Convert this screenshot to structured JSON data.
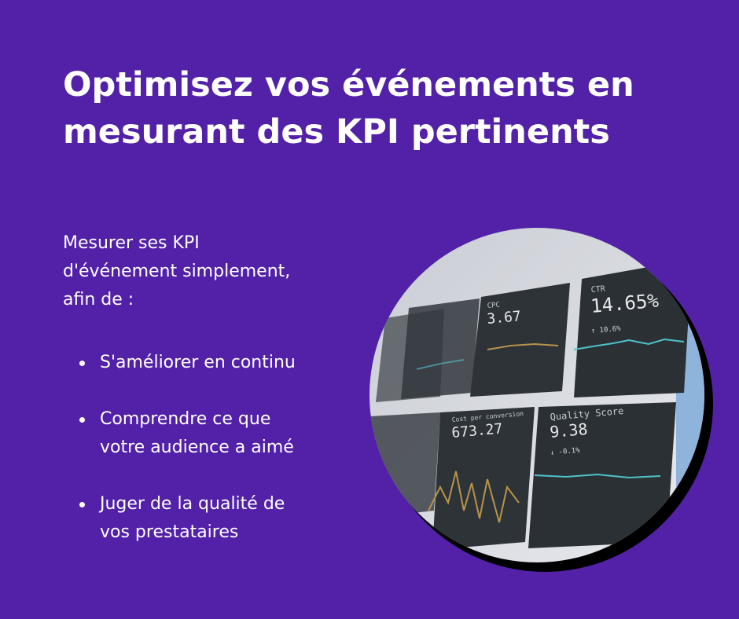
{
  "title_lines": [
    "Optimisez vos événements en",
    "mesurant des KPI pertinents"
  ],
  "intro_lines": [
    "Mesurer ses KPI",
    "d'événement simplement,",
    "afin de :"
  ],
  "bullets": [
    [
      "S'améliorer en continu"
    ],
    [
      "Comprendre ce que",
      "votre audience a aimé"
    ],
    [
      "Juger de la qualité de",
      "vos prestataires"
    ]
  ],
  "image": {
    "tiles": [
      {
        "label": "CPC",
        "value": "3.67"
      },
      {
        "label": "CTR",
        "value": "14.65%",
        "change": "↑ 10.6%"
      },
      {
        "label": "Cost per conversion",
        "value": "673.27"
      },
      {
        "label": "Quality Score",
        "value": "9.38",
        "change": "↓ -0.1%"
      }
    ]
  }
}
